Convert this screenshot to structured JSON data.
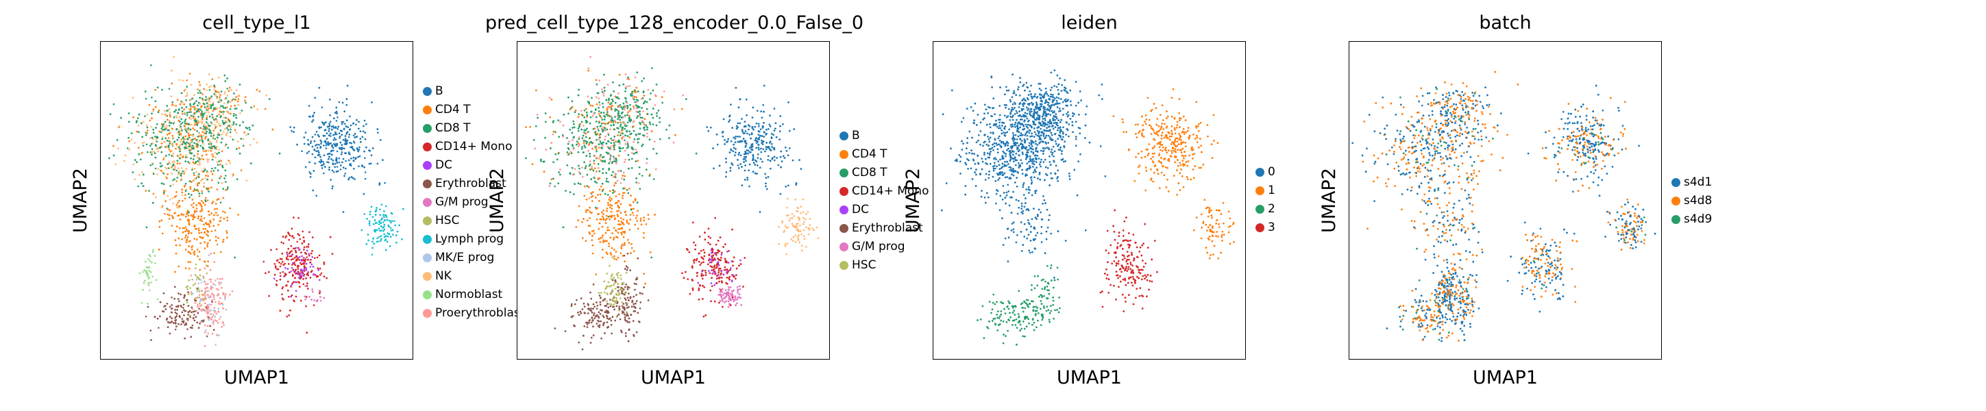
{
  "chart_data": [
    {
      "type": "scatter",
      "title": "cell_type_l1",
      "xlabel": "UMAP1",
      "ylabel": "UMAP2",
      "legend_position": "right",
      "legend": [
        {
          "label": "B",
          "color": "#1f77b4"
        },
        {
          "label": "CD4 T",
          "color": "#ff7f0e"
        },
        {
          "label": "CD8 T",
          "color": "#279e68"
        },
        {
          "label": "CD14+ Mono",
          "color": "#d62728"
        },
        {
          "label": "DC",
          "color": "#aa40fc"
        },
        {
          "label": "Erythroblast",
          "color": "#8c564b"
        },
        {
          "label": "G/M prog",
          "color": "#e377c2"
        },
        {
          "label": "HSC",
          "color": "#b5bd61"
        },
        {
          "label": "Lymph prog",
          "color": "#17becf"
        },
        {
          "label": "MK/E prog",
          "color": "#aec7e8"
        },
        {
          "label": "NK",
          "color": "#ffbb78"
        },
        {
          "label": "Normoblast",
          "color": "#98df8a"
        },
        {
          "label": "Proerythroblast",
          "color": "#ff9896"
        }
      ]
    },
    {
      "type": "scatter",
      "title": "pred_cell_type_128_encoder_0.0_False_0",
      "xlabel": "UMAP1",
      "ylabel": "UMAP2",
      "legend_position": "right",
      "legend": [
        {
          "label": "B",
          "color": "#1f77b4"
        },
        {
          "label": "CD4 T",
          "color": "#ff7f0e"
        },
        {
          "label": "CD8 T",
          "color": "#279e68"
        },
        {
          "label": "CD14+ Mono",
          "color": "#d62728"
        },
        {
          "label": "DC",
          "color": "#aa40fc"
        },
        {
          "label": "Erythroblast",
          "color": "#8c564b"
        },
        {
          "label": "G/M prog",
          "color": "#e377c2"
        },
        {
          "label": "HSC",
          "color": "#b5bd61"
        }
      ]
    },
    {
      "type": "scatter",
      "title": "leiden",
      "xlabel": "UMAP1",
      "ylabel": "UMAP2",
      "legend_position": "right",
      "legend": [
        {
          "label": "0",
          "color": "#1f77b4"
        },
        {
          "label": "1",
          "color": "#ff7f0e"
        },
        {
          "label": "2",
          "color": "#279e68"
        },
        {
          "label": "3",
          "color": "#d62728"
        }
      ]
    },
    {
      "type": "scatter",
      "title": "batch",
      "xlabel": "UMAP1",
      "ylabel": "UMAP2",
      "legend_position": "right",
      "legend": [
        {
          "label": "s4d1",
          "color": "#1f77b4"
        },
        {
          "label": "s4d8",
          "color": "#ff7f0e"
        },
        {
          "label": "s4d9",
          "color": "#279e68"
        }
      ]
    }
  ]
}
